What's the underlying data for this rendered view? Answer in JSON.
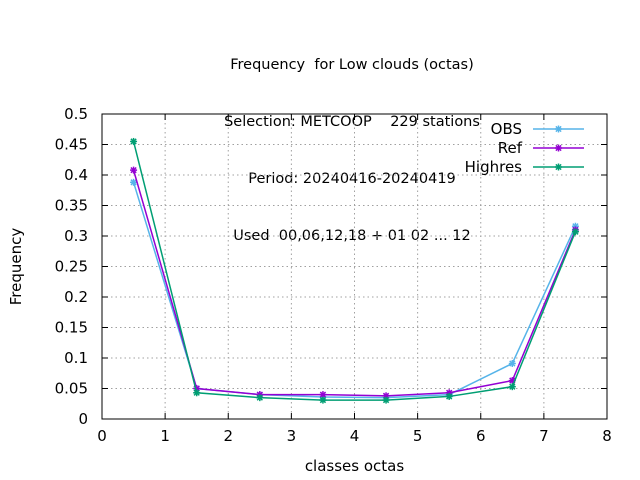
{
  "chart_data": {
    "type": "line",
    "title_lines": [
      "Frequency  for Low clouds (octas)",
      "Selection: METCOOP    229 stations",
      "Period: 20240416-20240419",
      "Used  00,06,12,18 + 01 02 ... 12"
    ],
    "xlabel": "classes octas",
    "ylabel": "Frequency",
    "xlim": [
      0,
      8
    ],
    "ylim": [
      0,
      0.5
    ],
    "x_ticks": [
      0,
      1,
      2,
      3,
      4,
      5,
      6,
      7,
      8
    ],
    "y_ticks": [
      0,
      0.05,
      0.1,
      0.15,
      0.2,
      0.25,
      0.3,
      0.35,
      0.4,
      0.45,
      0.5
    ],
    "grid": true,
    "legend_position": "top-right",
    "x": [
      0.5,
      1.5,
      2.5,
      3.5,
      4.5,
      5.5,
      6.5,
      7.5
    ],
    "series": [
      {
        "name": "OBS",
        "color": "#56b4e9",
        "values": [
          0.388,
          0.05,
          0.04,
          0.036,
          0.035,
          0.04,
          0.091,
          0.316
        ]
      },
      {
        "name": "Ref",
        "color": "#9400d3",
        "values": [
          0.408,
          0.05,
          0.04,
          0.04,
          0.038,
          0.043,
          0.063,
          0.31
        ]
      },
      {
        "name": "Highres",
        "color": "#009e73",
        "values": [
          0.455,
          0.043,
          0.035,
          0.031,
          0.031,
          0.037,
          0.053,
          0.307
        ]
      }
    ]
  }
}
